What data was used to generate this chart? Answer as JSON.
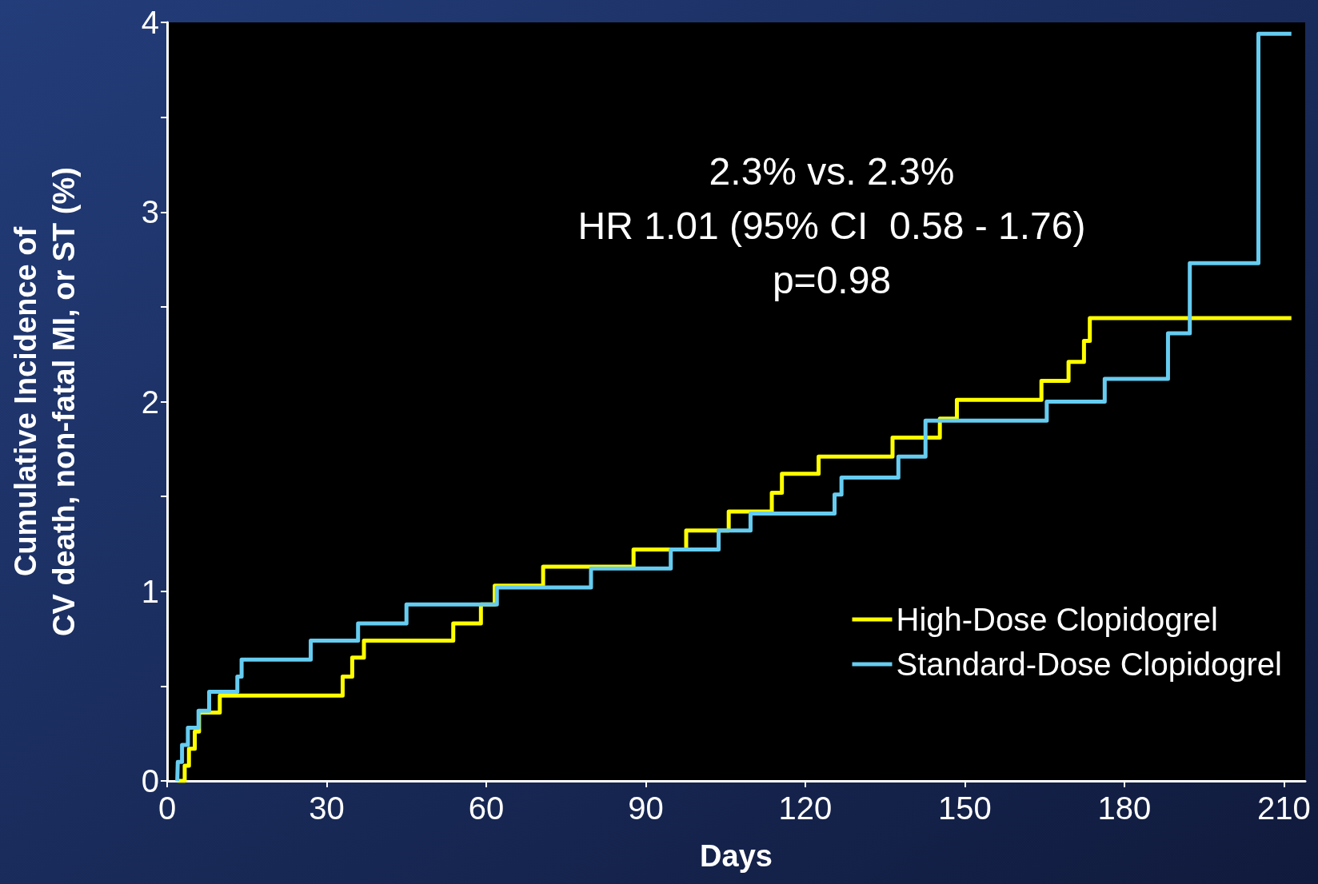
{
  "chart_data": {
    "type": "step",
    "xlabel": "Days",
    "ylabel": "Cumulative Incidence of\nCV death, non-fatal MI, or ST (%)",
    "xlim": [
      0,
      214
    ],
    "xticks": [
      0,
      30,
      60,
      90,
      120,
      150,
      180,
      210
    ],
    "ylim": [
      0,
      4
    ],
    "yticks": [
      0,
      {
        "value": 0.5,
        "label": null
      },
      1,
      {
        "value": 1.5,
        "label": null
      },
      2,
      {
        "value": 2.5,
        "label": null
      },
      3,
      {
        "value": 3.5,
        "label": null
      },
      4
    ],
    "grid": false,
    "legend": "bottom right",
    "marker": "none",
    "line_style": "solid",
    "annotations": [
      "2.3% vs. 2.3%",
      "HR 1.01 (95% CI  0.58 - 1.76)",
      "p=0.98"
    ],
    "series": [
      {
        "name": "High-Dose Clopidogrel",
        "color": "#ffff00",
        "x": [
          2,
          3.3,
          4.1,
          5.2,
          6,
          9.9,
          33,
          34.8,
          37,
          53.8,
          59,
          61.6,
          70.7,
          87.7,
          97.6,
          105.6,
          113.7,
          115.6,
          122.5,
          136.4,
          145.3,
          148.5,
          164.4,
          169.5,
          172.4,
          173.5,
          211.4
        ],
        "values": [
          0,
          0.08,
          0.17,
          0.26,
          0.36,
          0.45,
          0.55,
          0.65,
          0.74,
          0.83,
          0.93,
          1.03,
          1.13,
          1.22,
          1.32,
          1.42,
          1.52,
          1.62,
          1.71,
          1.81,
          1.91,
          2.01,
          2.11,
          2.21,
          2.32,
          2.44,
          2.44
        ]
      },
      {
        "name": "Standard-Dose Clopidogrel",
        "color": "#66ccf0",
        "x": [
          1.9,
          2,
          2.8,
          3.9,
          5.9,
          7.9,
          13.2,
          14,
          27,
          35.9,
          45,
          62,
          79.7,
          94.7,
          103.7,
          109.7,
          125.5,
          126.8,
          137.5,
          142.6,
          165.4,
          176.3,
          188.2,
          192.3,
          205.2,
          211.4
        ],
        "values": [
          0,
          0.1,
          0.19,
          0.28,
          0.37,
          0.47,
          0.55,
          0.64,
          0.74,
          0.83,
          0.93,
          1.02,
          1.12,
          1.22,
          1.32,
          1.41,
          1.51,
          1.6,
          1.71,
          1.9,
          2.0,
          2.12,
          2.36,
          2.73,
          3.94,
          3.94
        ]
      }
    ]
  }
}
